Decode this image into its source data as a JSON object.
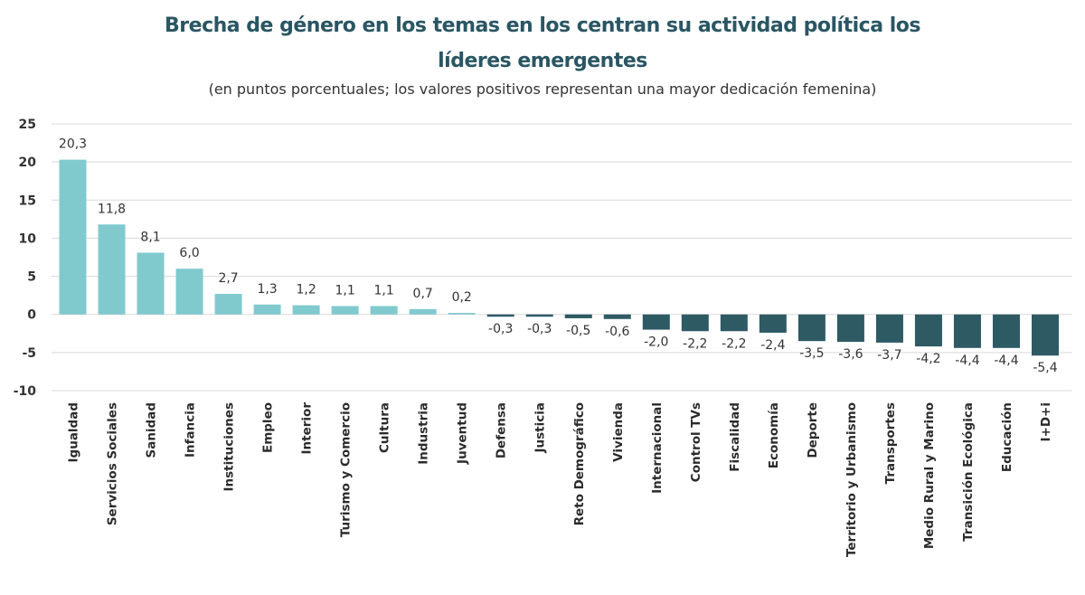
{
  "title_line1": "Brecha de género en los temas en los centran su actividad política los",
  "title_line2": "líderes emergentes",
  "subtitle": "(en puntos porcentuales; los valores positivos representan una mayor dedicación femenina)",
  "colors": {
    "positive": "#80cace",
    "negative": "#2e5a64",
    "grid": "#d9d9d9"
  },
  "chart_data": {
    "type": "bar",
    "title": "Brecha de género en los temas en los centran su actividad política los líderes emergentes",
    "subtitle": "(en puntos porcentuales; los valores positivos representan una mayor dedicación femenina)",
    "categories": [
      "Igualdad",
      "Servicios Sociales",
      "Sanidad",
      "Infancia",
      "Instituciones",
      "Empleo",
      "Interior",
      "Turismo y Comercio",
      "Cultura",
      "Industria",
      "Juventud",
      "Defensa",
      "Justicia",
      "Reto Demográfico",
      "Vivienda",
      "Internacional",
      "Control TVs",
      "Fiscalidad",
      "Economía",
      "Deporte",
      "Territorio y Urbanismo",
      "Transportes",
      "Medio Rural y Marino",
      "Transición Ecológica",
      "Educación",
      "I+D+i"
    ],
    "values": [
      20.3,
      11.8,
      8.1,
      6.0,
      2.7,
      1.3,
      1.2,
      1.1,
      1.1,
      0.7,
      0.2,
      -0.3,
      -0.3,
      -0.5,
      -0.6,
      -2.0,
      -2.2,
      -2.2,
      -2.4,
      -3.5,
      -3.6,
      -3.7,
      -4.2,
      -4.4,
      -4.4,
      -5.4
    ],
    "value_labels": [
      "20,3",
      "11,8",
      "8,1",
      "6,0",
      "2,7",
      "1,3",
      "1,2",
      "1,1",
      "1,1",
      "0,7",
      "0,2",
      "-0,3",
      "-0,3",
      "-0,5",
      "-0,6",
      "-2,0",
      "-2,2",
      "-2,2",
      "-2,4",
      "-3,5",
      "-3,6",
      "-3,7",
      "-4,2",
      "-4,4",
      "-4,4",
      "-5,4"
    ],
    "yticks": [
      25,
      20,
      15,
      10,
      5,
      0,
      -5,
      -10
    ],
    "ylim": [
      -10,
      25
    ],
    "grid": true,
    "legend": "none"
  }
}
